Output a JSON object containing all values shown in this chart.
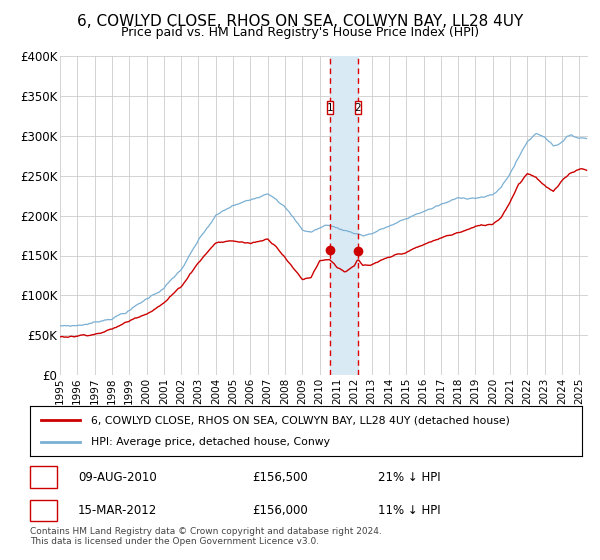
{
  "title": "6, COWLYD CLOSE, RHOS ON SEA, COLWYN BAY, LL28 4UY",
  "subtitle": "Price paid vs. HM Land Registry's House Price Index (HPI)",
  "legend_line1": "6, COWLYD CLOSE, RHOS ON SEA, COLWYN BAY, LL28 4UY (detached house)",
  "legend_line2": "HPI: Average price, detached house, Conwy",
  "footer1": "Contains HM Land Registry data © Crown copyright and database right 2024.",
  "footer2": "This data is licensed under the Open Government Licence v3.0.",
  "table": [
    {
      "num": "1",
      "date": "09-AUG-2010",
      "price": "£156,500",
      "hpi": "21% ↓ HPI"
    },
    {
      "num": "2",
      "date": "15-MAR-2012",
      "price": "£156,000",
      "hpi": "11% ↓ HPI"
    }
  ],
  "xmin": 1995.0,
  "xmax": 2025.5,
  "ymin": 0,
  "ymax": 400000,
  "yticks": [
    0,
    50000,
    100000,
    150000,
    200000,
    250000,
    300000,
    350000,
    400000
  ],
  "ytick_labels": [
    "£0",
    "£50K",
    "£100K",
    "£150K",
    "£200K",
    "£250K",
    "£300K",
    "£350K",
    "£400K"
  ],
  "vline1_x": 2010.6,
  "vline2_x": 2012.2,
  "purchase1_price": 156500,
  "purchase2_price": 156000,
  "marker_y": 335000,
  "red_color": "#cc0000",
  "blue_color": "#7ab0d4",
  "vline_color": "#dd0000",
  "shade_color": "#daeaf5",
  "background_color": "#ffffff",
  "grid_color": "#cccccc",
  "title_fontsize": 11,
  "subtitle_fontsize": 9
}
